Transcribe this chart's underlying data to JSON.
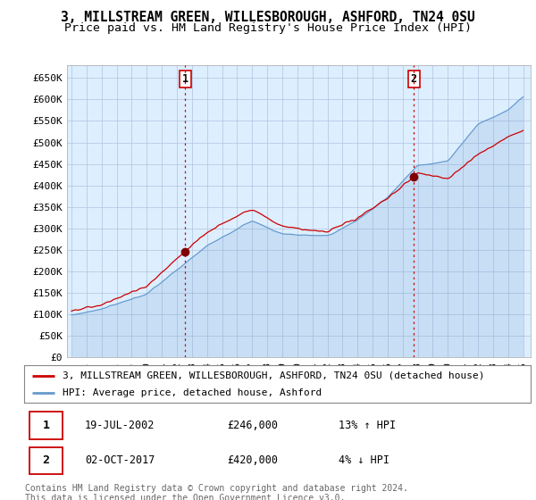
{
  "title": "3, MILLSTREAM GREEN, WILLESBOROUGH, ASHFORD, TN24 0SU",
  "subtitle": "Price paid vs. HM Land Registry's House Price Index (HPI)",
  "ylabel_ticks": [
    "£0",
    "£50K",
    "£100K",
    "£150K",
    "£200K",
    "£250K",
    "£300K",
    "£350K",
    "£400K",
    "£450K",
    "£500K",
    "£550K",
    "£600K",
    "£650K"
  ],
  "ytick_values": [
    0,
    50000,
    100000,
    150000,
    200000,
    250000,
    300000,
    350000,
    400000,
    450000,
    500000,
    550000,
    600000,
    650000
  ],
  "ylim": [
    0,
    680000
  ],
  "xlim_start": 1994.7,
  "xlim_end": 2025.5,
  "marker1_x": 2002.54,
  "marker1_y": 246000,
  "marker1_label": "1",
  "marker1_date": "19-JUL-2002",
  "marker1_price": "£246,000",
  "marker1_hpi": "13% ↑ HPI",
  "marker2_x": 2017.75,
  "marker2_y": 420000,
  "marker2_label": "2",
  "marker2_date": "02-OCT-2017",
  "marker2_price": "£420,000",
  "marker2_hpi": "4% ↓ HPI",
  "legend_line1": "3, MILLSTREAM GREEN, WILLESBOROUGH, ASHFORD, TN24 0SU (detached house)",
  "legend_line2": "HPI: Average price, detached house, Ashford",
  "footer": "Contains HM Land Registry data © Crown copyright and database right 2024.\nThis data is licensed under the Open Government Licence v3.0.",
  "price_color": "#cc0000",
  "hpi_color": "#6699cc",
  "bg_color": "#ddeeff",
  "marker_line_color": "#cc0000",
  "title_fontsize": 10.5,
  "subtitle_fontsize": 9.5,
  "tick_fontsize": 8,
  "legend_fontsize": 8,
  "footer_fontsize": 7
}
